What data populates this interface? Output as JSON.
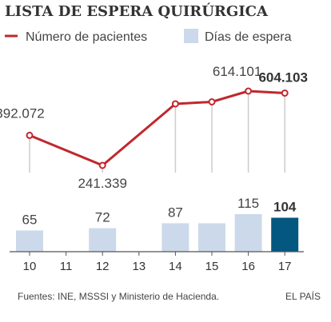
{
  "title": "LISTA DE ESPERA QUIRÚRGICA",
  "legend": {
    "line_label": "Número de pacientes",
    "bar_label": "Días de espera"
  },
  "source": "Fuentes: INE, MSSSI y Ministerio de Hacienda.",
  "brand": "EL PAÍS",
  "colors": {
    "line": "#c1272d",
    "bar": "#ccd9ea",
    "bar_highlight": "#04577f",
    "guide": "#cccccc",
    "axis": "#555555"
  },
  "chart_data": {
    "type": "bar+line",
    "categories": [
      "10",
      "11",
      "12",
      "13",
      "14",
      "15",
      "16",
      "17"
    ],
    "highlight_category": "17",
    "series": [
      {
        "name": "Número de pacientes",
        "type": "line",
        "values": [
          392072,
          null,
          241339,
          null,
          550000,
          560000,
          614101,
          604103
        ],
        "labels": [
          "392.072",
          null,
          "241.339",
          null,
          null,
          null,
          "614.101",
          "604.103"
        ]
      },
      {
        "name": "Días de espera",
        "type": "bar",
        "values": [
          65,
          null,
          72,
          null,
          87,
          87,
          115,
          104
        ],
        "labels": [
          "65",
          null,
          "72",
          null,
          "87",
          null,
          "115",
          "104"
        ]
      }
    ],
    "grid": false
  }
}
